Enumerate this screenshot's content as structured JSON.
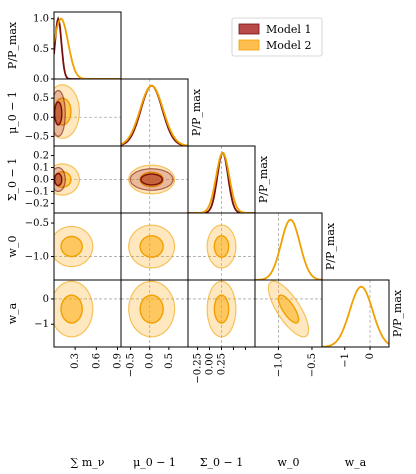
{
  "chart_data": {
    "type": "corner",
    "title": "",
    "parameters": [
      {
        "key": "mnu",
        "label": "∑ m_ν",
        "range": [
          0.0,
          0.95
        ],
        "ticks": [
          0.3,
          0.6,
          0.9
        ],
        "tick_labels": [
          "0.3",
          "0.6",
          "0.9"
        ]
      },
      {
        "key": "mu0",
        "label": "μ_0 − 1",
        "range": [
          -0.75,
          1.0
        ],
        "ticks": [
          -0.5,
          0.0,
          0.5
        ],
        "tick_labels": [
          "−0.5",
          "0.0",
          "0.5"
        ]
      },
      {
        "key": "sig0",
        "label": "Σ_0 − 1",
        "range": [
          -0.28,
          0.28
        ],
        "ticks": [
          -0.2,
          -0.1,
          0.0,
          0.1,
          0.2
        ],
        "tick_labels": [
          "−0.2",
          "−0.1",
          "0.0",
          "0.1",
          "0.2"
        ]
      },
      {
        "key": "w0",
        "label": "w_0",
        "range": [
          -1.35,
          -0.35
        ],
        "ticks": [
          -1.0,
          -0.5
        ],
        "tick_labels": [
          "−1.0",
          "−0.5"
        ]
      },
      {
        "key": "wa",
        "label": "w_a",
        "range": [
          -1.9,
          0.75
        ],
        "ticks": [
          -1,
          0
        ],
        "tick_labels": [
          "−1",
          "0"
        ]
      }
    ],
    "bottom_tick_labels": [
      [
        "0.3",
        "0.6",
        "0.9"
      ],
      [
        "−0.5",
        "0.0",
        "0.5"
      ],
      [
        "−0.25",
        "0.00",
        "0.25"
      ],
      [
        "−1.0",
        "−0.5"
      ],
      [
        "−1",
        "0"
      ]
    ],
    "marginal_ylabel": "P/P_max",
    "marginal_yticks": [
      "0.0",
      "0.5",
      "1.0"
    ],
    "reference_values": {
      "mu0": 0.0,
      "sig0": 0.0,
      "w0": -1.0,
      "wa": 0.0
    },
    "legend_position": "top-right",
    "series": [
      {
        "name": "Model 1",
        "fill": "#a52a2a",
        "line": "#7a0f0f",
        "marginals": {
          "mnu": {
            "peak": 0.06,
            "width": 0.045,
            "lower_bound": 0.0
          },
          "mu0": {
            "peak": 0.05,
            "width": 0.28
          },
          "sig0": {
            "peak": 0.01,
            "width": 0.045
          }
        },
        "contours": {
          "mnu-mu0": {
            "center": [
              0.06,
              0.1
            ],
            "sigma": [
              0.05,
              0.3
            ]
          },
          "mnu-sig0": {
            "center": [
              0.06,
              0.0
            ],
            "sigma": [
              0.05,
              0.05
            ]
          },
          "mu0-sig0": {
            "center": [
              0.05,
              0.0
            ],
            "sigma": [
              0.28,
              0.045
            ]
          }
        }
      },
      {
        "name": "Model 2",
        "fill": "#ffa500",
        "line": "#f0a000",
        "marginals": {
          "mnu": {
            "peak": 0.1,
            "width": 0.1
          },
          "mu0": {
            "peak": 0.05,
            "width": 0.3
          },
          "sig0": {
            "peak": 0.01,
            "width": 0.055
          },
          "w0": {
            "peak": -0.82,
            "width": 0.14
          },
          "wa": {
            "peak": -0.35,
            "width": 0.45
          }
        },
        "contours": {
          "mnu-mu0": {
            "center": [
              0.12,
              0.15
            ],
            "sigma": [
              0.12,
              0.35
            ]
          },
          "mnu-sig0": {
            "center": [
              0.12,
              0.0
            ],
            "sigma": [
              0.12,
              0.065
            ]
          },
          "mnu-w0": {
            "center": [
              0.25,
              -0.85
            ],
            "sigma": [
              0.15,
              0.15
            ]
          },
          "mnu-wa": {
            "center": [
              0.25,
              -0.4
            ],
            "sigma": [
              0.15,
              0.55
            ]
          },
          "mu0-sig0": {
            "center": [
              0.05,
              0.0
            ],
            "sigma": [
              0.3,
              0.06
            ]
          },
          "mu0-w0": {
            "center": [
              0.05,
              -0.85
            ],
            "sigma": [
              0.3,
              0.16
            ]
          },
          "mu0-wa": {
            "center": [
              0.05,
              -0.4
            ],
            "sigma": [
              0.3,
              0.55
            ]
          },
          "sig0-w0": {
            "center": [
              0.0,
              -0.85
            ],
            "sigma": [
              0.06,
              0.16
            ]
          },
          "sig0-wa": {
            "center": [
              0.0,
              -0.4
            ],
            "sigma": [
              0.06,
              0.55
            ]
          },
          "w0-wa": {
            "center": [
              -0.85,
              -0.4
            ],
            "sigma": [
              0.15,
              0.55
            ],
            "corr": -0.75
          }
        }
      }
    ]
  }
}
